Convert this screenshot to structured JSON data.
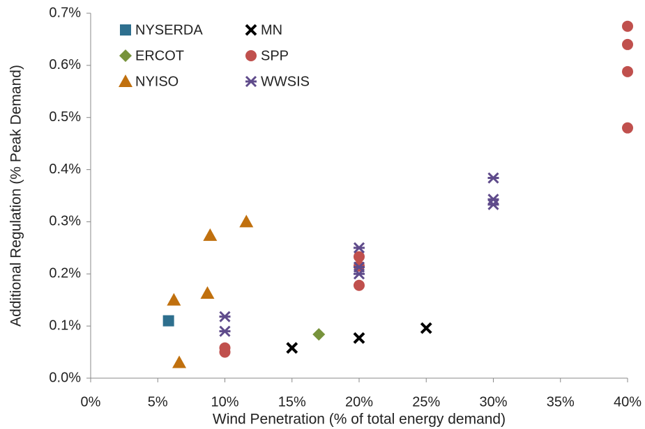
{
  "chart_data": {
    "type": "scatter",
    "x_label": "Wind Penetration (% of total energy demand)",
    "y_label": "Additional Regulation (% Peak Demand)",
    "xlim": [
      0,
      40
    ],
    "xticks": [
      {
        "value": 0,
        "label": "0%"
      },
      {
        "value": 5,
        "label": "5%"
      },
      {
        "value": 10,
        "label": "10%"
      },
      {
        "value": 15,
        "label": "15%"
      },
      {
        "value": 20,
        "label": "20%"
      },
      {
        "value": 25,
        "label": "25%"
      },
      {
        "value": 30,
        "label": "30%"
      },
      {
        "value": 35,
        "label": "35%"
      },
      {
        "value": 40,
        "label": "40%"
      }
    ],
    "ylim": [
      0,
      0.7
    ],
    "yticks": [
      {
        "value": 0,
        "label": "0.0%"
      },
      {
        "value": 0.1,
        "label": "0.1%"
      },
      {
        "value": 0.2,
        "label": "0.2%"
      },
      {
        "value": 0.3,
        "label": "0.3%"
      },
      {
        "value": 0.4,
        "label": "0.4%"
      },
      {
        "value": 0.5,
        "label": "0.5%"
      },
      {
        "value": 0.6,
        "label": "0.6%"
      },
      {
        "value": 0.7,
        "label": "0.7%"
      }
    ],
    "legend": "upper left",
    "series": [
      {
        "name": "NYSERDA",
        "color": "#2e6f8e",
        "marker": "square",
        "x": [
          5.8
        ],
        "values": [
          0.11
        ]
      },
      {
        "name": "ERCOT",
        "color": "#77933c",
        "marker": "diamond",
        "x": [
          17
        ],
        "values": [
          0.084
        ]
      },
      {
        "name": "NYISO",
        "color": "#c0700e",
        "marker": "triangle",
        "x": [
          6.2,
          6.6,
          8.7,
          8.9,
          11.6
        ],
        "values": [
          0.15,
          0.03,
          0.163,
          0.274,
          0.3
        ]
      },
      {
        "name": "MN",
        "color": "#000000",
        "marker": "x",
        "x": [
          15,
          20,
          25
        ],
        "values": [
          0.058,
          0.077,
          0.096
        ]
      },
      {
        "name": "SPP",
        "color": "#c0504d",
        "marker": "circle",
        "x": [
          10,
          10,
          20,
          20,
          20,
          40,
          40,
          40,
          40
        ],
        "values": [
          0.058,
          0.05,
          0.233,
          0.215,
          0.178,
          0.675,
          0.64,
          0.588,
          0.48
        ]
      },
      {
        "name": "WWSIS",
        "color": "#5f4b8b",
        "marker": "star",
        "x": [
          10,
          10,
          20,
          20,
          20,
          30,
          30,
          30
        ],
        "values": [
          0.118,
          0.09,
          0.25,
          0.213,
          0.2,
          0.384,
          0.343,
          0.333
        ]
      }
    ]
  }
}
